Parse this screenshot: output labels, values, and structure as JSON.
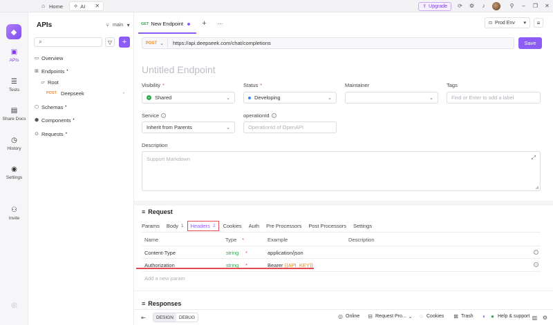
{
  "titlebar": {
    "home_tab": "Home",
    "ai_tab": "AI",
    "upgrade": "Upgrade"
  },
  "rail": {
    "apis": "APIs",
    "tests": "Tests",
    "share_docs": "Share Docs",
    "history": "History",
    "settings": "Settings",
    "invite": "Invite"
  },
  "sidebar": {
    "title": "APIs",
    "branch": "main",
    "overview": "Overview",
    "endpoints": "Endpoints",
    "root": "Root",
    "post_method": "POST",
    "deepseek": "Deepseek",
    "schemas": "Schemas",
    "components": "Components",
    "requests": "Requests"
  },
  "tab": {
    "method": "GET",
    "name": "New Endpoint"
  },
  "env": "Prod Env",
  "url": {
    "method": "POST",
    "value": "https://api.deepseek.com/chat/completions",
    "save": "Save"
  },
  "form": {
    "endpoint_name_placeholder": "Untitled Endpoint",
    "visibility_label": "Visibility",
    "visibility_value": "Shared",
    "status_label": "Status",
    "status_value": "Developing",
    "maintainer_label": "Maintainer",
    "tags_label": "Tags",
    "tags_placeholder": "Find or Enter to add a label",
    "service_label": "Service",
    "service_value": "Inherit from Parents",
    "operation_label": "operationId",
    "operation_placeholder": "OperationId of OpenAPI",
    "description_label": "Description",
    "description_placeholder": "Support Markdown"
  },
  "request": {
    "title": "Request",
    "tabs": [
      {
        "label": "Params",
        "count": ""
      },
      {
        "label": "Body",
        "count": "1"
      },
      {
        "label": "Headers",
        "count": "2"
      },
      {
        "label": "Cookies",
        "count": ""
      },
      {
        "label": "Auth",
        "count": ""
      },
      {
        "label": "Pre Processors",
        "count": ""
      },
      {
        "label": "Post Processors",
        "count": ""
      },
      {
        "label": "Settings",
        "count": ""
      }
    ],
    "columns": {
      "name": "Name",
      "type": "Type",
      "example": "Example",
      "description": "Description"
    },
    "rows": [
      {
        "name": "Content-Type",
        "type": "string",
        "example": "application/json",
        "example_var": ""
      },
      {
        "name": "Authorization",
        "type": "string",
        "example": "Bearer ",
        "example_var": "{{API_KEY}}"
      }
    ],
    "add_placeholder": "Add a new param"
  },
  "responses": {
    "title": "Responses"
  },
  "footer": {
    "design": "DESIGN",
    "debug": "DEBUG",
    "online": "Online",
    "request_proxy": "Request Pro...",
    "cookies": "Cookies",
    "trash": "Trash",
    "help": "Help & support"
  }
}
